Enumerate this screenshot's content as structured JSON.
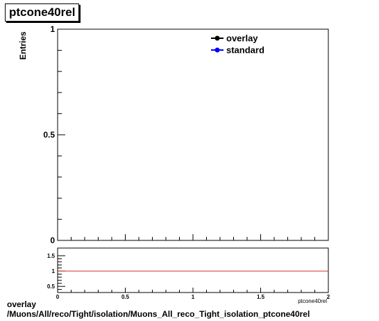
{
  "chart_data": [
    {
      "type": "line",
      "title": "ptcone40rel",
      "ylabel": "Entries",
      "xlim": [
        0,
        2
      ],
      "ylim": [
        0,
        1
      ],
      "yticks": [
        0,
        0.5,
        1
      ],
      "y_tick_labels": [
        "0",
        "0.5",
        "1"
      ],
      "legend_position": "top-right",
      "series": [
        {
          "name": "overlay",
          "color": "#000000",
          "x": [],
          "y": []
        },
        {
          "name": "standard",
          "color": "#0000ff",
          "x": [],
          "y": []
        }
      ]
    },
    {
      "type": "line",
      "xlabel": "ptcone40rel",
      "xlim": [
        0,
        2
      ],
      "ylim": [
        0.3,
        1.75
      ],
      "xticks": [
        0,
        0.5,
        1,
        1.5,
        2
      ],
      "x_tick_labels": [
        "0",
        "0.5",
        "1",
        "1.5",
        "2"
      ],
      "yticks": [
        0.5,
        1,
        1.5
      ],
      "y_tick_labels": [
        "0.5",
        "1",
        "1.5"
      ],
      "reference_line": {
        "y": 1,
        "color": "#cc3333"
      }
    }
  ],
  "footer": {
    "line1": "overlay",
    "line2": "/Muons/All/reco/Tight/isolation/Muons_All_reco_Tight_isolation_ptcone40rel"
  }
}
